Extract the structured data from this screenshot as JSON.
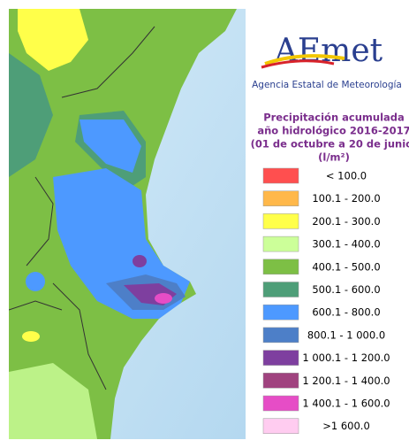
{
  "logo": {
    "name": "AEmet",
    "agency": "Agencia Estatal de Meteorología"
  },
  "title": [
    "Precipitación acumulada",
    "año hidrológico 2016-2017",
    "(01 de octubre a 20 de junio)",
    "(l/m²)"
  ],
  "legend": [
    {
      "label": "< 100.0",
      "color": "#ff4f4f"
    },
    {
      "label": "100.1 - 200.0",
      "color": "#ffb84a"
    },
    {
      "label": "200.1 - 300.0",
      "color": "#ffff4a"
    },
    {
      "label": "300.1 - 400.0",
      "color": "#ccff99"
    },
    {
      "label": "400.1 - 500.0",
      "color": "#7dbf45"
    },
    {
      "label": "500.1 - 600.0",
      "color": "#4e9e78"
    },
    {
      "label": "600.1 - 800.0",
      "color": "#4d99ff"
    },
    {
      "label": "800.1 - 1 000.0",
      "color": "#4d7fc8"
    },
    {
      "label": "1 000.1 - 1 200.0",
      "color": "#7e3f9f"
    },
    {
      "label": "1 200.1 - 1 400.0",
      "color": "#a0437f"
    },
    {
      "label": "1 400.1 - 1 600.0",
      "color": "#e64dc6"
    },
    {
      "label": ">1 600.0",
      "color": "#ffccf0"
    }
  ]
}
